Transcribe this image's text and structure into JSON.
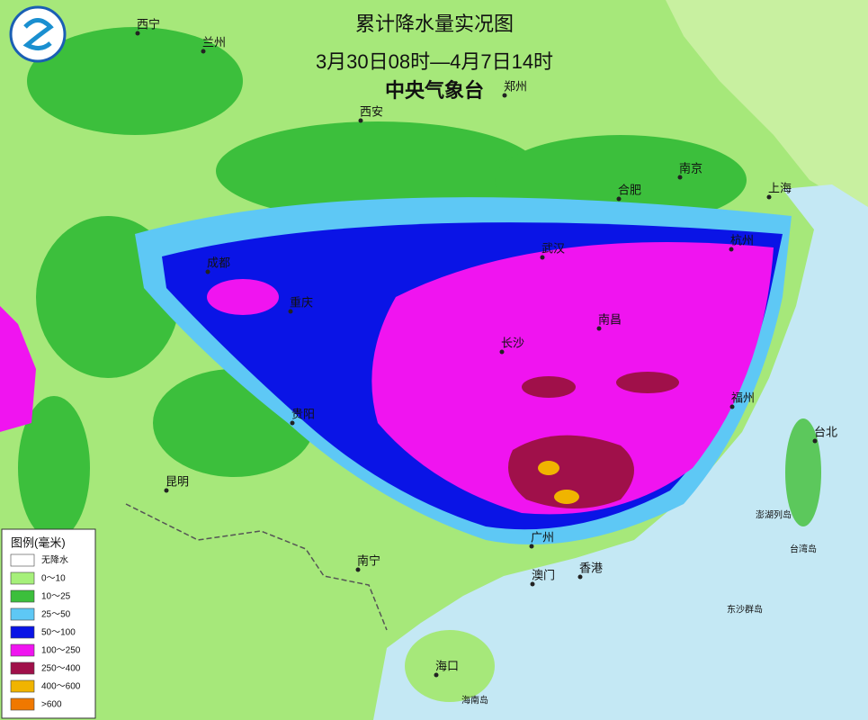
{
  "header": {
    "title": "累计降水量实况图",
    "period": "3月30日08时—4月7日14时",
    "agency": "中央气象台"
  },
  "cities": [
    "西宁",
    "兰州",
    "郑州",
    "西安",
    "南京",
    "合肥",
    "上海",
    "杭州",
    "成都",
    "武汉",
    "重庆",
    "南昌",
    "长沙",
    "福州",
    "台北",
    "贵阳",
    "昆明",
    "澎湖列岛",
    "广州",
    "南宁",
    "澳门",
    "香港",
    "台湾岛",
    "东沙群岛",
    "海口",
    "海南岛"
  ],
  "legend": {
    "title": "图例(毫米)",
    "items": [
      {
        "label": "无降水",
        "color": "#ffffff"
      },
      {
        "label": "0～10",
        "color": "#a6f07a"
      },
      {
        "label": "10～25",
        "color": "#3cbf3c"
      },
      {
        "label": "25～50",
        "color": "#5ec8f5"
      },
      {
        "label": "50～100",
        "color": "#0a14e6"
      },
      {
        "label": "100～250",
        "color": "#f014f0"
      },
      {
        "label": "250～400",
        "color": "#a0104a"
      },
      {
        "label": "400～600",
        "color": "#f0b400"
      },
      {
        "label": ">600",
        "color": "#f07800"
      }
    ]
  }
}
